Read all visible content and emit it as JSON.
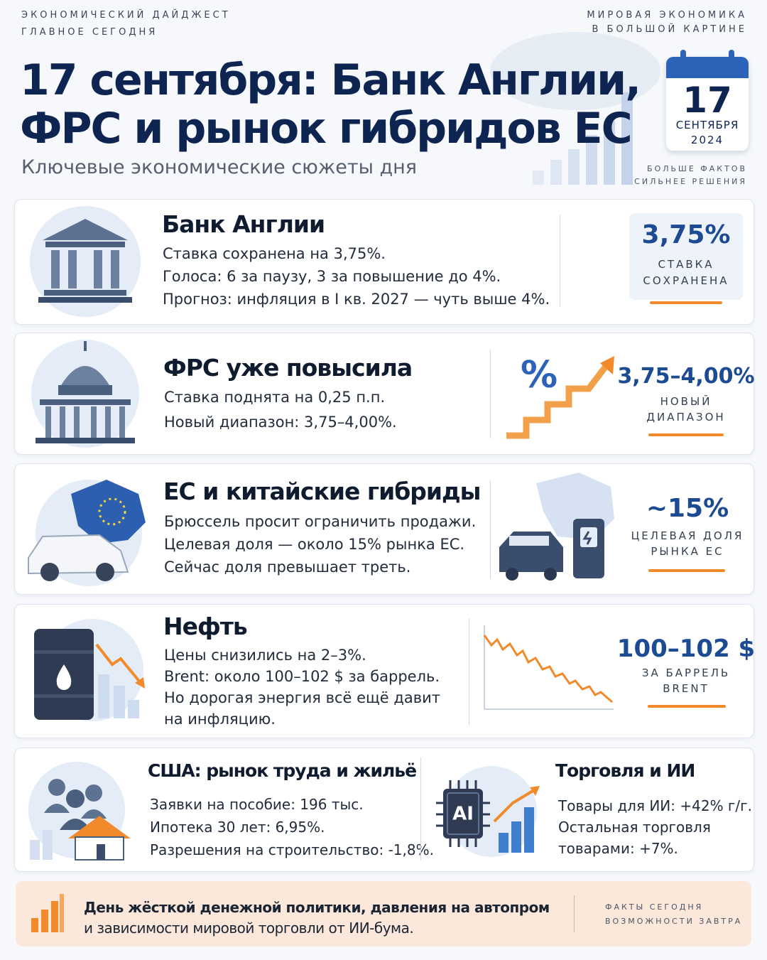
{
  "header": {
    "kicker_lines": [
      "ЭКОНОМИЧЕСКИЙ ДАЙДЖЕСТ",
      "ГЛАВНОЕ СЕГОДНЯ"
    ],
    "right_lines": [
      "МИРОВАЯ ЭКОНОМИКА",
      "В БОЛЬШОЙ КАРТИНЕ"
    ],
    "title_lines": [
      "17 сентября: Банк Англии,",
      "ФРС и рынок гибридов ЕС"
    ],
    "subtitle": "Ключевые экономические сюжеты дня",
    "calendar": {
      "day": "17",
      "month": "СЕНТЯБРЯ",
      "year": "2024"
    },
    "tagline": [
      "БОЛЬШЕ ФАКТОВ",
      "СИЛЬНЕЕ РЕШЕНИЯ"
    ]
  },
  "cards": [
    {
      "title": "Банк Англии",
      "lines": [
        "Ставка сохранена на 3,75%.",
        "Голоса: 6 за паузу, 3 за повышение до 4%.",
        "Прогноз: инфляция в I кв. 2027 — чуть выше 4%."
      ],
      "stat": "3,75%",
      "stat_label": [
        "СТАВКА",
        "СОХРАНЕНА"
      ]
    },
    {
      "title": "ФРС уже повысила",
      "lines": [
        "Ставка поднята на 0,25 п.п.",
        "Новый диапазон: 3,75–4,00%."
      ],
      "stat": "3,75–4,00%",
      "stat_label": [
        "НОВЫЙ",
        "ДИАПАЗОН"
      ]
    },
    {
      "title": "ЕС и китайские гибриды",
      "lines": [
        "Брюссель просит ограничить продажи.",
        "Целевая доля — около 15% рынка ЕС.",
        "Сейчас доля превышает треть."
      ],
      "stat": "~15%",
      "stat_label": [
        "ЦЕЛЕВАЯ ДОЛЯ",
        "РЫНКА ЕС"
      ]
    },
    {
      "title": "Нефть",
      "lines": [
        "Цены снизились на 2–3%.",
        "Brent: около 100–102 $ за баррель.",
        "Но дорогая энергия всё ещё давит",
        "на инфляцию."
      ],
      "stat": "100–102 $",
      "stat_label": [
        "ЗА БАРРЕЛЬ",
        "BRENT"
      ]
    }
  ],
  "bottom": [
    {
      "title": "США:  рынок труда и жильё",
      "lines": [
        "Заявки на пособие: 196 тыс.",
        "Ипотека 30 лет: 6,95%.",
        "Разрешения на строительство: -1,8%."
      ]
    },
    {
      "title": "Торговля и ИИ",
      "lines": [
        "Товары для ИИ: +42% г/г.",
        "Остальная торговля",
        "товарами: +7%."
      ]
    }
  ],
  "icon_label": "AI",
  "footer": {
    "lines": [
      "День жёсткой денежной политики, давления на автопром",
      "и зависимости мировой торговли от ИИ-бума."
    ],
    "tagline": [
      "ФАКТЫ СЕГОДНЯ",
      "ВОЗМОЖНОСТИ ЗАВТРА"
    ]
  }
}
